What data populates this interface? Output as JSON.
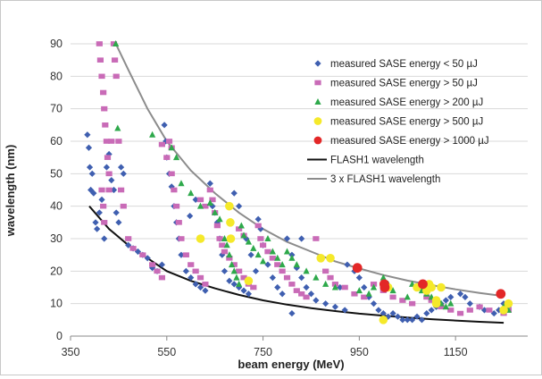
{
  "chart_data": {
    "type": "scatter",
    "title": "",
    "xlabel": "beam energy (MeV)",
    "ylabel": "wavelength (nm)",
    "xlim": [
      350,
      1300
    ],
    "ylim": [
      0,
      90
    ],
    "x_ticks": [
      350,
      550,
      750,
      950,
      1150
    ],
    "y_ticks": [
      0,
      10,
      20,
      30,
      40,
      50,
      60,
      70,
      80,
      90
    ],
    "grid": "horizontal",
    "legend_position": "top-right",
    "series": [
      {
        "name": "measured SASE energy < 50 µJ",
        "marker": "diamond",
        "color": "#3f5fb0",
        "points": [
          [
            385,
            62
          ],
          [
            388,
            58
          ],
          [
            390,
            52
          ],
          [
            392,
            45
          ],
          [
            395,
            50
          ],
          [
            398,
            44
          ],
          [
            402,
            35
          ],
          [
            405,
            33
          ],
          [
            410,
            38
          ],
          [
            415,
            42
          ],
          [
            420,
            30
          ],
          [
            425,
            52
          ],
          [
            430,
            56
          ],
          [
            435,
            48
          ],
          [
            440,
            45
          ],
          [
            445,
            38
          ],
          [
            450,
            35
          ],
          [
            455,
            52
          ],
          [
            460,
            50
          ],
          [
            470,
            28
          ],
          [
            480,
            27
          ],
          [
            490,
            26
          ],
          [
            500,
            25
          ],
          [
            510,
            24
          ],
          [
            520,
            21
          ],
          [
            530,
            20
          ],
          [
            540,
            22
          ],
          [
            545,
            65
          ],
          [
            548,
            60
          ],
          [
            550,
            55
          ],
          [
            555,
            50
          ],
          [
            560,
            46
          ],
          [
            565,
            40
          ],
          [
            570,
            35
          ],
          [
            575,
            30
          ],
          [
            580,
            25
          ],
          [
            590,
            20
          ],
          [
            600,
            18
          ],
          [
            610,
            16
          ],
          [
            620,
            15
          ],
          [
            630,
            14
          ],
          [
            640,
            47
          ],
          [
            645,
            40
          ],
          [
            650,
            38
          ],
          [
            655,
            35
          ],
          [
            660,
            30
          ],
          [
            665,
            25
          ],
          [
            670,
            20
          ],
          [
            680,
            17
          ],
          [
            690,
            16
          ],
          [
            700,
            15
          ],
          [
            710,
            14
          ],
          [
            720,
            13
          ],
          [
            740,
            36
          ],
          [
            745,
            33
          ],
          [
            750,
            28
          ],
          [
            760,
            22
          ],
          [
            770,
            18
          ],
          [
            780,
            15
          ],
          [
            790,
            13
          ],
          [
            800,
            30
          ],
          [
            810,
            25
          ],
          [
            820,
            21
          ],
          [
            830,
            18
          ],
          [
            840,
            15
          ],
          [
            850,
            13
          ],
          [
            860,
            11
          ],
          [
            880,
            10
          ],
          [
            900,
            9
          ],
          [
            920,
            8
          ],
          [
            940,
            20
          ],
          [
            950,
            18
          ],
          [
            960,
            15
          ],
          [
            970,
            12
          ],
          [
            980,
            10
          ],
          [
            990,
            8
          ],
          [
            1000,
            7
          ],
          [
            1010,
            6
          ],
          [
            1020,
            7
          ],
          [
            1030,
            6
          ],
          [
            1040,
            5
          ],
          [
            1050,
            5
          ],
          [
            1060,
            5
          ],
          [
            1070,
            6
          ],
          [
            1080,
            5
          ],
          [
            1090,
            7
          ],
          [
            1100,
            8
          ],
          [
            1110,
            9
          ],
          [
            1120,
            10
          ],
          [
            1130,
            11
          ],
          [
            1140,
            12
          ],
          [
            1160,
            13
          ],
          [
            1170,
            12
          ],
          [
            1180,
            10
          ],
          [
            1200,
            9
          ],
          [
            1210,
            8
          ],
          [
            1230,
            7
          ],
          [
            1240,
            8
          ],
          [
            1250,
            10
          ],
          [
            1260,
            9
          ],
          [
            598,
            37
          ],
          [
            610,
            42
          ],
          [
            690,
            44
          ],
          [
            700,
            40
          ],
          [
            715,
            30
          ],
          [
            725,
            25
          ],
          [
            735,
            20
          ],
          [
            810,
            7
          ],
          [
            830,
            30
          ],
          [
            870,
            24
          ],
          [
            910,
            15
          ],
          [
            925,
            22
          ]
        ]
      },
      {
        "name": "measured SASE energy > 50 µJ",
        "marker": "square",
        "color": "#c96bb7",
        "points": [
          [
            410,
            90
          ],
          [
            412,
            85
          ],
          [
            415,
            80
          ],
          [
            418,
            75
          ],
          [
            420,
            70
          ],
          [
            422,
            65
          ],
          [
            425,
            60
          ],
          [
            427,
            55
          ],
          [
            430,
            50
          ],
          [
            415,
            45
          ],
          [
            418,
            40
          ],
          [
            420,
            35
          ],
          [
            440,
            90
          ],
          [
            442,
            85
          ],
          [
            445,
            80
          ],
          [
            450,
            60
          ],
          [
            455,
            45
          ],
          [
            460,
            40
          ],
          [
            470,
            30
          ],
          [
            480,
            27
          ],
          [
            500,
            25
          ],
          [
            520,
            22
          ],
          [
            530,
            20
          ],
          [
            540,
            18
          ],
          [
            550,
            55
          ],
          [
            555,
            60
          ],
          [
            560,
            50
          ],
          [
            565,
            45
          ],
          [
            570,
            40
          ],
          [
            575,
            35
          ],
          [
            580,
            30
          ],
          [
            590,
            25
          ],
          [
            600,
            22
          ],
          [
            610,
            20
          ],
          [
            620,
            18
          ],
          [
            630,
            16
          ],
          [
            640,
            45
          ],
          [
            645,
            42
          ],
          [
            650,
            38
          ],
          [
            655,
            34
          ],
          [
            660,
            30
          ],
          [
            665,
            28
          ],
          [
            670,
            26
          ],
          [
            680,
            24
          ],
          [
            690,
            22
          ],
          [
            700,
            20
          ],
          [
            710,
            18
          ],
          [
            720,
            16
          ],
          [
            730,
            15
          ],
          [
            740,
            34
          ],
          [
            745,
            30
          ],
          [
            750,
            28
          ],
          [
            760,
            26
          ],
          [
            770,
            24
          ],
          [
            780,
            22
          ],
          [
            790,
            20
          ],
          [
            800,
            18
          ],
          [
            810,
            16
          ],
          [
            820,
            14
          ],
          [
            830,
            13
          ],
          [
            840,
            12
          ],
          [
            860,
            30
          ],
          [
            870,
            24
          ],
          [
            880,
            20
          ],
          [
            890,
            18
          ],
          [
            900,
            16
          ],
          [
            920,
            15
          ],
          [
            940,
            13
          ],
          [
            960,
            12
          ],
          [
            980,
            16
          ],
          [
            1000,
            14
          ],
          [
            1020,
            12
          ],
          [
            1040,
            11
          ],
          [
            1060,
            10
          ],
          [
            1080,
            15
          ],
          [
            1090,
            12
          ],
          [
            1100,
            11
          ],
          [
            1110,
            10
          ],
          [
            1120,
            9
          ],
          [
            1140,
            8
          ],
          [
            1160,
            7
          ],
          [
            1180,
            8
          ],
          [
            1200,
            9
          ],
          [
            1220,
            8
          ],
          [
            1250,
            7
          ],
          [
            1260,
            8
          ],
          [
            430,
            45
          ],
          [
            435,
            60
          ],
          [
            540,
            59
          ],
          [
            560,
            58
          ],
          [
            620,
            42
          ],
          [
            630,
            40
          ],
          [
            700,
            33
          ],
          [
            710,
            31
          ]
        ]
      },
      {
        "name": "measured SASE energy > 200 µJ",
        "marker": "triangle",
        "color": "#2ea94b",
        "points": [
          [
            444,
            90
          ],
          [
            448,
            64
          ],
          [
            520,
            62
          ],
          [
            560,
            58
          ],
          [
            570,
            55
          ],
          [
            580,
            47
          ],
          [
            600,
            44
          ],
          [
            620,
            40
          ],
          [
            640,
            41
          ],
          [
            650,
            38
          ],
          [
            660,
            36
          ],
          [
            670,
            30
          ],
          [
            675,
            28
          ],
          [
            680,
            25
          ],
          [
            685,
            22
          ],
          [
            690,
            20
          ],
          [
            695,
            18
          ],
          [
            700,
            16
          ],
          [
            705,
            34
          ],
          [
            710,
            31
          ],
          [
            720,
            29
          ],
          [
            730,
            27
          ],
          [
            740,
            25
          ],
          [
            750,
            23
          ],
          [
            760,
            30
          ],
          [
            770,
            26
          ],
          [
            780,
            24
          ],
          [
            790,
            22
          ],
          [
            800,
            26
          ],
          [
            810,
            24
          ],
          [
            820,
            22
          ],
          [
            840,
            20
          ],
          [
            860,
            18
          ],
          [
            880,
            16
          ],
          [
            900,
            15
          ],
          [
            950,
            14
          ],
          [
            970,
            13
          ],
          [
            980,
            15
          ],
          [
            1000,
            18
          ],
          [
            1010,
            16
          ],
          [
            1020,
            14
          ],
          [
            1050,
            12
          ],
          [
            1060,
            16
          ],
          [
            1070,
            15
          ],
          [
            1080,
            14
          ],
          [
            1090,
            13
          ],
          [
            1100,
            12
          ],
          [
            1110,
            11
          ],
          [
            1120,
            10
          ],
          [
            1130,
            9
          ],
          [
            1140,
            10
          ],
          [
            1250,
            9
          ],
          [
            1260,
            8
          ],
          [
            1000,
            5
          ]
        ]
      },
      {
        "name": "measured SASE energy > 500 µJ",
        "marker": "circle",
        "color": "#f5e92a",
        "points": [
          [
            620,
            30
          ],
          [
            680,
            40
          ],
          [
            682,
            35
          ],
          [
            683,
            30
          ],
          [
            720,
            17
          ],
          [
            870,
            24
          ],
          [
            890,
            24
          ],
          [
            1000,
            5
          ],
          [
            1010,
            15
          ],
          [
            1070,
            15
          ],
          [
            1090,
            14
          ],
          [
            1095,
            16
          ],
          [
            1100,
            15
          ],
          [
            1110,
            11
          ],
          [
            1110,
            10
          ],
          [
            1120,
            15
          ],
          [
            1250,
            8
          ],
          [
            1260,
            10
          ]
        ]
      },
      {
        "name": "measured SASE energy > 1000 µJ",
        "marker": "circle",
        "color": "#e32727",
        "points": [
          [
            946,
            21
          ],
          [
            1002,
            16
          ],
          [
            1003,
            15
          ],
          [
            1082,
            16
          ],
          [
            1244,
            13
          ]
        ]
      }
    ],
    "lines": [
      {
        "name": "FLASH1 wavelength",
        "color": "#111111",
        "points": [
          [
            389,
            40
          ],
          [
            430,
            33
          ],
          [
            470,
            28
          ],
          [
            510,
            24
          ],
          [
            550,
            20
          ],
          [
            600,
            17
          ],
          [
            650,
            14.7
          ],
          [
            700,
            12.7
          ],
          [
            750,
            11.0
          ],
          [
            800,
            9.7
          ],
          [
            850,
            8.6
          ],
          [
            900,
            7.7
          ],
          [
            950,
            6.9
          ],
          [
            1000,
            6.3
          ],
          [
            1050,
            5.7
          ],
          [
            1100,
            5.2
          ],
          [
            1150,
            4.8
          ],
          [
            1200,
            4.4
          ],
          [
            1250,
            4.1
          ]
        ]
      },
      {
        "name": "3 x FLASH1 wavelength",
        "color": "#8c8c8c",
        "points": [
          [
            444,
            90
          ],
          [
            470,
            82
          ],
          [
            510,
            70
          ],
          [
            550,
            60
          ],
          [
            600,
            51
          ],
          [
            650,
            44
          ],
          [
            700,
            38
          ],
          [
            750,
            33
          ],
          [
            800,
            29
          ],
          [
            850,
            26
          ],
          [
            900,
            23
          ],
          [
            950,
            20.8
          ],
          [
            1000,
            18.8
          ],
          [
            1050,
            17.1
          ],
          [
            1100,
            15.7
          ],
          [
            1150,
            14.4
          ],
          [
            1200,
            13.3
          ],
          [
            1250,
            12.3
          ]
        ]
      }
    ]
  }
}
